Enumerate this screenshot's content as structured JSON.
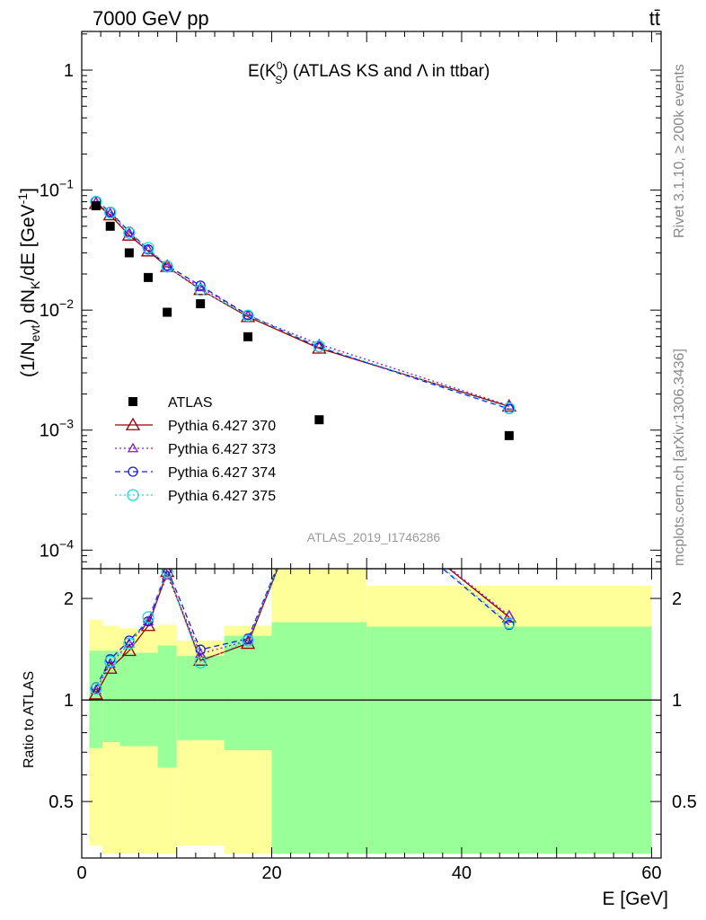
{
  "header": {
    "energy_label": "7000 GeV pp",
    "process_label": "tt̄"
  },
  "side": {
    "rivet": "Rivet 3.1.10, ≥ 200k events",
    "source": "mcplots.cern.ch [arXiv:1306.3436]"
  },
  "chart_data": [
    {
      "type": "scatter",
      "title": "E(K_S^0) (ATLAS KS and Λ in ttbar)",
      "title_parts": {
        "main": "E(K",
        "sup": "0",
        "sub": "S",
        "rest": ") (ATLAS KS and Λ in ttbar)"
      },
      "ylabel": "(1/N_evt) dN_K/dE [GeV^-1]",
      "ylabel_parts": {
        "a": "(1/N",
        "sub1": "evt",
        "b": ") dN",
        "sub2": "K",
        "c": "/dE [GeV",
        "sup": "-1",
        "d": "]"
      },
      "xlabel": "",
      "yscale": "log",
      "xlim": [
        0,
        61
      ],
      "ylim": [
        7e-05,
        2.1
      ],
      "y_ticks": [
        {
          "value": 1,
          "base": "1",
          "exp": ""
        },
        {
          "value": 0.1,
          "base": "10",
          "exp": "−1"
        },
        {
          "value": 0.01,
          "base": "10",
          "exp": "−2"
        },
        {
          "value": 0.001,
          "base": "10",
          "exp": "−3"
        },
        {
          "value": 0.0001,
          "base": "10",
          "exp": "−4"
        }
      ],
      "watermark": "ATLAS_2019_I1746286",
      "legend_position": "lower-left",
      "data": {
        "name": "ATLAS",
        "x": [
          1.5,
          3,
          5,
          7,
          9,
          12.5,
          17.5,
          25,
          45
        ],
        "y": [
          0.074,
          0.05,
          0.03,
          0.0187,
          0.0096,
          0.0113,
          0.006,
          0.00122,
          0.0009
        ],
        "color": "#000000"
      },
      "series": [
        {
          "name": "Pythia 6.427 370",
          "color": "#990000",
          "line": "solid",
          "marker": "triangle",
          "x": [
            1.5,
            3,
            5,
            7,
            9,
            12.5,
            17.5,
            25,
            45
          ],
          "y": [
            0.077,
            0.062,
            0.042,
            0.031,
            0.023,
            0.0148,
            0.0088,
            0.0048,
            0.00158
          ]
        },
        {
          "name": "Pythia 6.427 373",
          "color": "#7a1fd6",
          "line": "dotted",
          "marker": "triangle-small",
          "x": [
            1.5,
            3,
            5,
            7,
            9,
            12.5,
            17.5,
            25,
            45
          ],
          "y": [
            0.079,
            0.064,
            0.044,
            0.032,
            0.0225,
            0.0155,
            0.009,
            0.0052,
            0.0016
          ]
        },
        {
          "name": "Pythia 6.427 374",
          "color": "#1a1ae0",
          "line": "dashed",
          "marker": "circle",
          "x": [
            1.5,
            3,
            5,
            7,
            9,
            12.5,
            17.5,
            25,
            45
          ],
          "y": [
            0.081,
            0.066,
            0.045,
            0.032,
            0.0235,
            0.016,
            0.0091,
            0.0049,
            0.0015
          ]
        },
        {
          "name": "Pythia 6.427 375",
          "color": "#20d8d8",
          "line": "dotted",
          "marker": "circle-large",
          "x": [
            1.5,
            3,
            5,
            7,
            9,
            12.5,
            17.5,
            25,
            45
          ],
          "y": [
            0.08,
            0.065,
            0.044,
            0.033,
            0.023,
            0.0147,
            0.009,
            0.005,
            0.00152
          ]
        }
      ]
    },
    {
      "type": "area",
      "ylabel": "Ratio to ATLAS",
      "xlabel": "E [GeV]",
      "yscale": "log",
      "xlim": [
        0,
        61
      ],
      "ylim": [
        0.34,
        2.45
      ],
      "x_ticks": [
        0,
        20,
        40,
        60
      ],
      "y_ticks": [
        0.5,
        1,
        2
      ],
      "bands": [
        {
          "x0": 0.8,
          "x1": 2.2,
          "yellow": [
            0.37,
            1.73
          ],
          "green": [
            0.72,
            1.4
          ]
        },
        {
          "x0": 2.2,
          "x1": 4,
          "yellow": [
            0.35,
            1.66
          ],
          "green": [
            0.75,
            1.4
          ]
        },
        {
          "x0": 4,
          "x1": 8,
          "yellow": [
            0.35,
            1.63
          ],
          "green": [
            0.73,
            1.38
          ]
        },
        {
          "x0": 8,
          "x1": 10,
          "yellow": [
            0.35,
            1.67
          ],
          "green": [
            0.63,
            1.45
          ]
        },
        {
          "x0": 10,
          "x1": 15,
          "yellow": [
            0.37,
            1.5
          ],
          "green": [
            0.76,
            1.35
          ]
        },
        {
          "x0": 15,
          "x1": 20,
          "yellow": [
            0.35,
            1.66
          ],
          "green": [
            0.71,
            1.55
          ]
        },
        {
          "x0": 20,
          "x1": 30,
          "yellow": [
            0.35,
            2.5
          ],
          "green": [
            0.35,
            1.7
          ]
        },
        {
          "x0": 30,
          "x1": 60,
          "yellow": [
            0.35,
            2.18
          ],
          "green": [
            0.35,
            1.65
          ]
        }
      ],
      "series": [
        {
          "name": "Pythia 6.427 370",
          "y": [
            1.04,
            1.24,
            1.4,
            1.66,
            2.4,
            1.31,
            1.47,
            5.0,
            1.76
          ]
        },
        {
          "name": "Pythia 6.427 373",
          "y": [
            1.07,
            1.28,
            1.47,
            1.71,
            2.34,
            1.37,
            1.5,
            5.0,
            1.78
          ]
        },
        {
          "name": "Pythia 6.427 374",
          "y": [
            1.09,
            1.32,
            1.5,
            1.71,
            2.45,
            1.41,
            1.52,
            5.0,
            1.67
          ]
        },
        {
          "name": "Pythia 6.427 375",
          "y": [
            1.08,
            1.3,
            1.47,
            1.76,
            2.4,
            1.29,
            1.5,
            5.0,
            1.69
          ]
        }
      ]
    }
  ]
}
